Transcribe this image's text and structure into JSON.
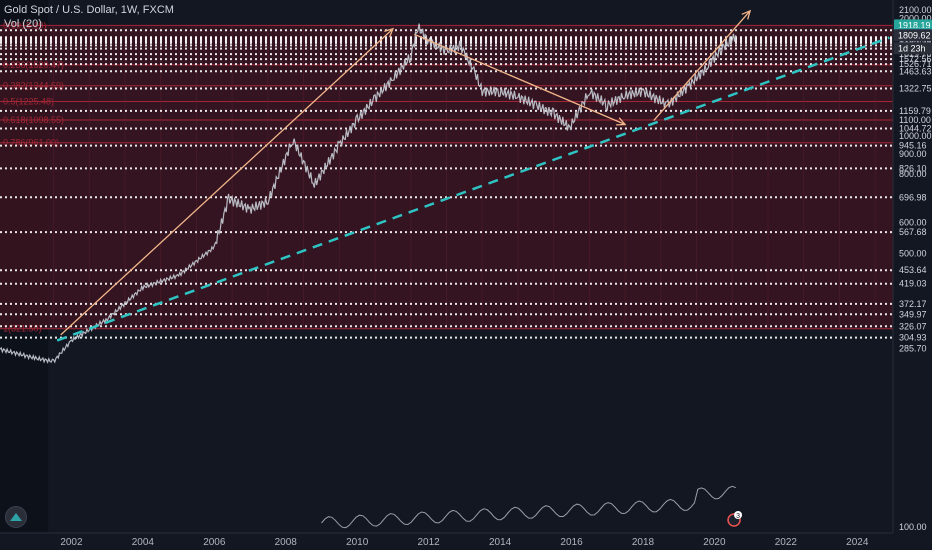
{
  "legend": {
    "symbol": "Gold Spot / U.S. Dollar, 1W, FXCM",
    "volume": "Vol (20)"
  },
  "price_axis": {
    "labels": [
      "2100.00",
      "2000.00",
      "1900.00",
      "1863.37",
      "1788.75",
      "1777.90",
      "1764.48",
      "1745.54",
      "1730.28",
      "1704.65",
      "1672.56",
      "1619.70",
      "1572.56",
      "1526.71",
      "1463.63",
      "1322.75",
      "1159.79",
      "1100.00",
      "1044.72",
      "1000.00",
      "945.16",
      "900.00",
      "826.10",
      "800.00",
      "696.98",
      "600.00",
      "567.68",
      "500.00",
      "453.64",
      "419.03",
      "372.17",
      "349.97",
      "326.07",
      "304.93",
      "285.70",
      "100.00"
    ],
    "badges": [
      {
        "text": "1918.19",
        "color": "#26a69a"
      },
      {
        "text": "1823.47",
        "color": "#2ea3a7"
      },
      {
        "text": "1809.62",
        "color": "#2a2e39"
      },
      {
        "text": "1d 23h",
        "color": "#2a2e39"
      }
    ]
  },
  "time_axis": {
    "labels": [
      "2002",
      "2004",
      "2006",
      "2008",
      "2010",
      "2012",
      "2014",
      "2016",
      "2018",
      "2020",
      "2022",
      "2024"
    ]
  },
  "fib_labels": [
    "0(1918.19)",
    "0.236(1520.47)",
    "0.382(1344.59)",
    "0.5(1225.48)",
    "0.618(1098.55)",
    "0.786(961.00)",
    "1(321.50)"
  ],
  "event_badge": "3",
  "colors": {
    "background": "#131722",
    "fib_fill": "#3a1420",
    "fib_line": "#a32636",
    "dotted_level": "#ffffff",
    "trendline": "#2ec4c4",
    "arrows": "#f2b58a",
    "price": "#c8cdd6",
    "volume": "#9aa0aa"
  },
  "chart_data": {
    "type": "line",
    "title": "Gold Spot / U.S. Dollar, 1W, FXCM",
    "xlabel": "",
    "ylabel": "",
    "scale": "log",
    "xlim": [
      2000.0,
      2025.0
    ],
    "ylim": [
      100,
      2100
    ],
    "grid": false,
    "series": [
      {
        "type": "line",
        "values_x": [
          2000.0,
          2001.0,
          2001.5,
          2002.0,
          2003.0,
          2004.0,
          2005.0,
          2006.0,
          2006.4,
          2007.0,
          2007.5,
          2008.2,
          2008.8,
          2009.5,
          2010.0,
          2010.5,
          2011.0,
          2011.5,
          2011.7,
          2012.0,
          2012.5,
          2012.9,
          2013.3,
          2013.5,
          2014.0,
          2014.5,
          2015.0,
          2015.5,
          2015.95,
          2016.5,
          2017.0,
          2017.5,
          2018.0,
          2018.7,
          2019.3,
          2019.8,
          2020.2,
          2020.4,
          2020.6
        ],
        "values": [
          285,
          270,
          265,
          300,
          340,
          410,
          440,
          520,
          690,
          650,
          680,
          980,
          750,
          950,
          1100,
          1250,
          1400,
          1600,
          1900,
          1750,
          1650,
          1700,
          1450,
          1300,
          1300,
          1260,
          1200,
          1140,
          1050,
          1300,
          1200,
          1270,
          1300,
          1200,
          1350,
          1500,
          1680,
          1730,
          1810
        ]
      }
    ],
    "levels": [
      1863.37,
      1788.75,
      1777.9,
      1764.48,
      1745.54,
      1730.28,
      1704.65,
      1672.56,
      1619.7,
      1572.56,
      1526.71,
      1463.63,
      1322.75,
      1159.79,
      1044.72,
      945.16,
      826.1,
      696.98,
      567.68,
      453.64,
      419.03,
      372.17,
      349.97,
      326.07,
      304.93
    ],
    "fib_levels": [
      1918.19,
      1520.47,
      1344.59,
      1225.48,
      1098.55,
      961.0,
      321.5
    ],
    "trendline": {
      "x": [
        2001.6,
        2024.9
      ],
      "y": [
        300,
        1785
      ]
    },
    "arrows": [
      {
        "x": [
          2001.7,
          2011.0
        ],
        "y": [
          310,
          1880
        ]
      },
      {
        "x": [
          2011.6,
          2017.5
        ],
        "y": [
          1820,
          1070
        ]
      },
      {
        "x": [
          2018.3,
          2021.0
        ],
        "y": [
          1095,
          2090
        ]
      }
    ],
    "last_price": 1809.62,
    "ath_level": 1918.19
  }
}
